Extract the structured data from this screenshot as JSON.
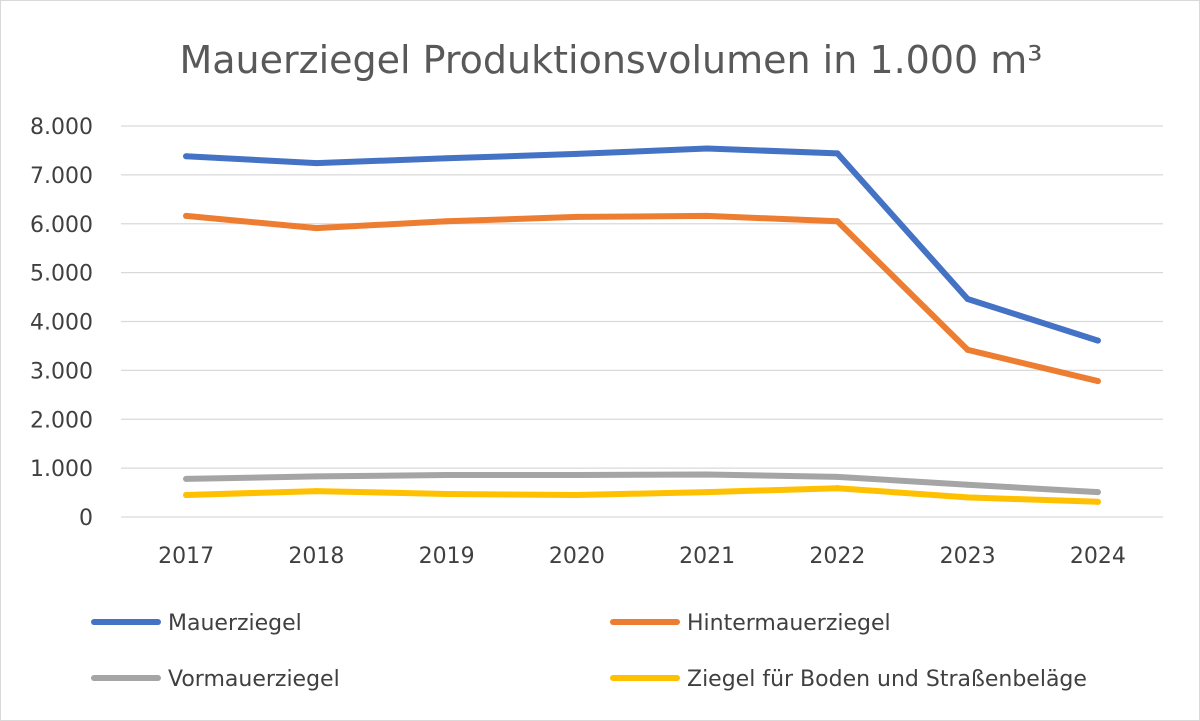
{
  "chart_data": {
    "type": "line",
    "title": "Mauerziegel Produktionsvolumen in 1.000 m³",
    "x": [
      "2017",
      "2018",
      "2019",
      "2020",
      "2021",
      "2022",
      "2023",
      "2024"
    ],
    "y_ticks": [
      "0",
      "1.000",
      "2.000",
      "3.000",
      "4.000",
      "5.000",
      "6.000",
      "7.000",
      "8.000"
    ],
    "ylim": [
      0,
      8000
    ],
    "grid": true,
    "legend_position": "bottom",
    "series": [
      {
        "name": "Mauerziegel",
        "color": "#4472c4",
        "values": [
          7380,
          7240,
          7340,
          7430,
          7540,
          7440,
          4460,
          3610
        ]
      },
      {
        "name": "Hintermauerziegel",
        "color": "#ed7d31",
        "values": [
          6160,
          5910,
          6050,
          6140,
          6160,
          6050,
          3420,
          2780
        ]
      },
      {
        "name": "Vormauerziegel",
        "color": "#a5a5a5",
        "values": [
          780,
          830,
          860,
          860,
          870,
          820,
          660,
          510
        ]
      },
      {
        "name": "Ziegel für Boden und Straßenbeläge",
        "color": "#ffc000",
        "values": [
          450,
          530,
          470,
          450,
          510,
          590,
          400,
          310
        ]
      }
    ]
  }
}
